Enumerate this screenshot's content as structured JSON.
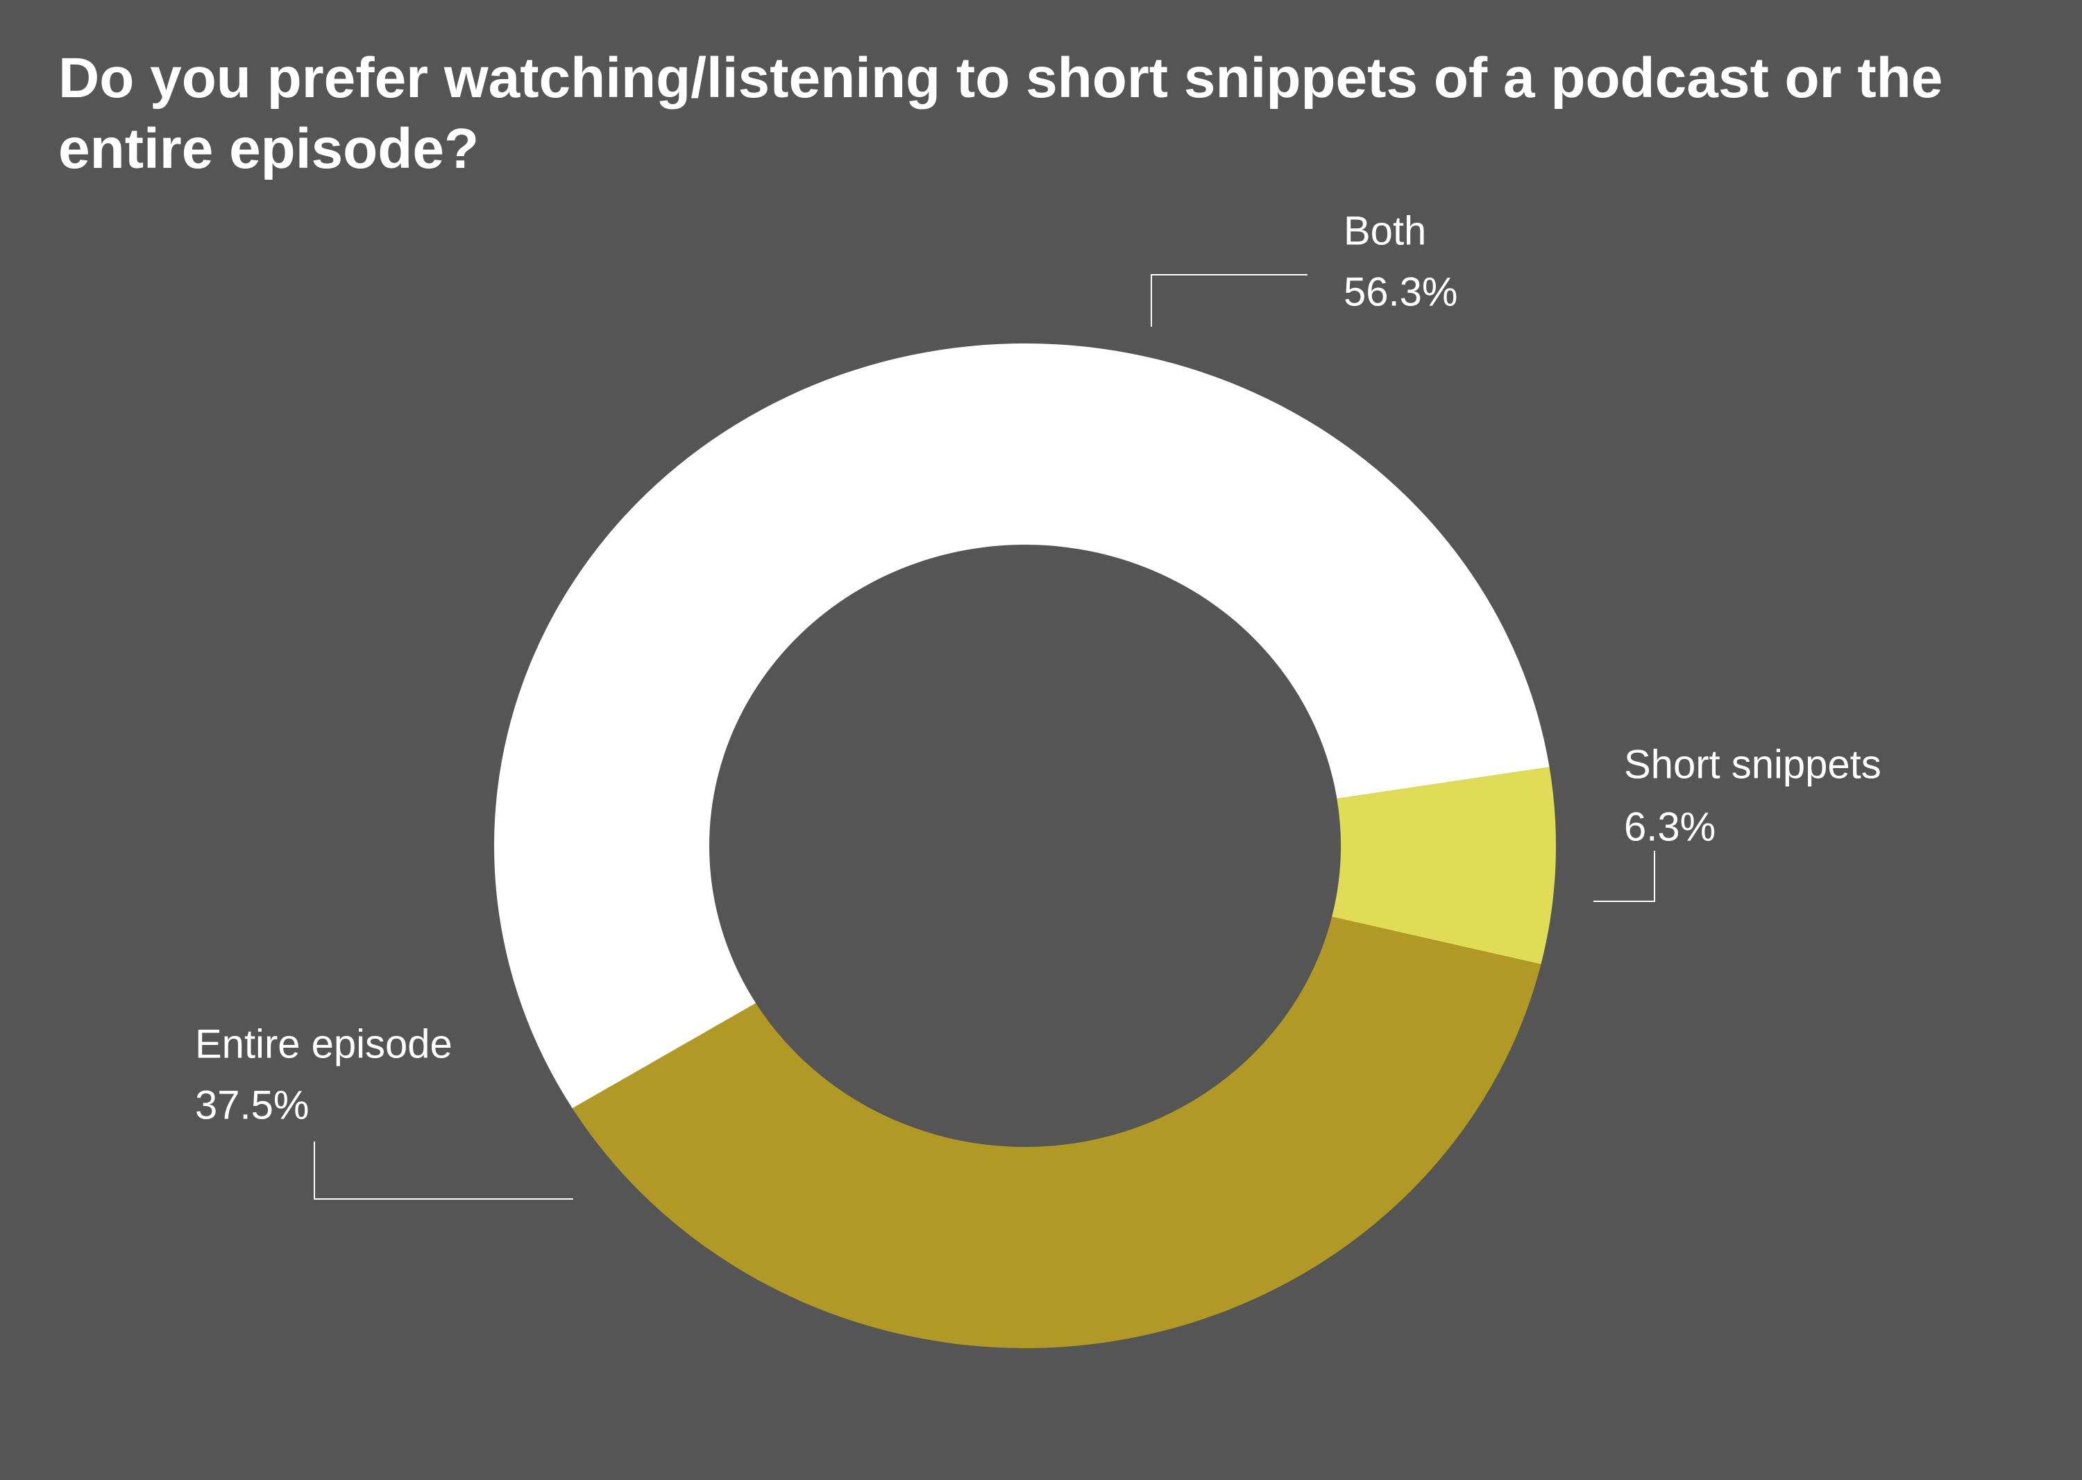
{
  "chart_data": {
    "type": "donut",
    "title": "Do you prefer watching/listening to short snippets of a podcast or the entire episode?",
    "categories": [
      "Both",
      "Short snippets",
      "Entire episode"
    ],
    "values": [
      56.3,
      6.3,
      37.5
    ],
    "value_labels": [
      "56.3%",
      "6.3%",
      "37.5%"
    ],
    "colors": [
      "#ffffff",
      "#e0dc55",
      "#b09a25"
    ]
  }
}
